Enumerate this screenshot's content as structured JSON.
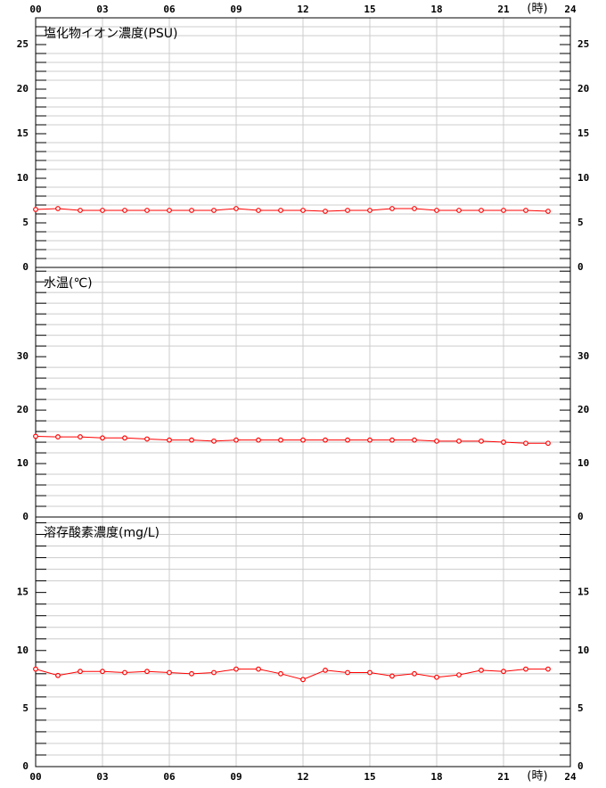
{
  "chart_data": [
    {
      "type": "line",
      "title": "塩化物イオン濃度(PSU)",
      "xaxis": "top",
      "xlabel": "(時)",
      "x": [
        0,
        1,
        2,
        3,
        4,
        5,
        6,
        7,
        8,
        9,
        10,
        11,
        12,
        13,
        14,
        15,
        16,
        17,
        18,
        19,
        20,
        21,
        22,
        23
      ],
      "xlim": [
        0,
        24
      ],
      "xticks": [
        {
          "value": 0,
          "label": "00"
        },
        {
          "value": 3,
          "label": "03"
        },
        {
          "value": 6,
          "label": "06"
        },
        {
          "value": 9,
          "label": "09"
        },
        12,
        15,
        18,
        21,
        24
      ],
      "series": [
        {
          "color": "#ff0000",
          "values": [
            6.5,
            6.6,
            6.4,
            6.4,
            6.4,
            6.4,
            6.4,
            6.4,
            6.4,
            6.6,
            6.4,
            6.4,
            6.4,
            6.3,
            6.4,
            6.4,
            6.6,
            6.6,
            6.4,
            6.4,
            6.4,
            6.4,
            6.4,
            6.3
          ]
        }
      ],
      "ylim": [
        0,
        28
      ],
      "yticks": [
        0,
        5,
        10,
        15,
        20,
        25
      ],
      "minor_yticks": [
        1,
        2,
        3,
        4,
        6,
        7,
        8,
        9,
        11,
        12,
        13,
        14,
        16,
        17,
        18,
        19,
        21,
        22,
        23,
        24,
        26,
        27
      ]
    },
    {
      "type": "line",
      "title": "水温(℃)",
      "x": [
        0,
        1,
        2,
        3,
        4,
        5,
        6,
        7,
        8,
        9,
        10,
        11,
        12,
        13,
        14,
        15,
        16,
        17,
        18,
        19,
        20,
        21,
        22,
        23
      ],
      "xlim": [
        0,
        24
      ],
      "xticks": [
        0,
        3,
        6,
        9,
        12,
        15,
        18,
        21,
        24
      ],
      "series": [
        {
          "color": "#ff0000",
          "values": [
            15.1,
            15.0,
            15.0,
            14.8,
            14.8,
            14.6,
            14.4,
            14.4,
            14.2,
            14.4,
            14.4,
            14.4,
            14.4,
            14.4,
            14.4,
            14.4,
            14.4,
            14.4,
            14.2,
            14.2,
            14.2,
            14.0,
            13.8,
            13.8
          ]
        }
      ],
      "ylim": [
        0,
        46.7
      ],
      "yticks": [
        0,
        10,
        20,
        30
      ],
      "minor_yticks": [
        2,
        4,
        6,
        8,
        12,
        14,
        16,
        18,
        22,
        24,
        26,
        28,
        32,
        34,
        36,
        38,
        40,
        42,
        44,
        46
      ]
    },
    {
      "type": "line",
      "title": "溶存酸素濃度(mg/L)",
      "xaxis": "bottom",
      "xlabel": "(時)",
      "x": [
        0,
        1,
        2,
        3,
        4,
        5,
        6,
        7,
        8,
        9,
        10,
        11,
        12,
        13,
        14,
        15,
        16,
        17,
        18,
        19,
        20,
        21,
        22,
        23
      ],
      "xlim": [
        0,
        24
      ],
      "xticks": [
        {
          "value": 0,
          "label": "00"
        },
        {
          "value": 3,
          "label": "03"
        },
        {
          "value": 6,
          "label": "06"
        },
        {
          "value": 9,
          "label": "09"
        },
        12,
        15,
        18,
        21,
        24
      ],
      "series": [
        {
          "color": "#ff0000",
          "values": [
            8.4,
            7.85,
            8.2,
            8.2,
            8.1,
            8.2,
            8.1,
            8.0,
            8.1,
            8.4,
            8.4,
            8.0,
            7.5,
            8.3,
            8.1,
            8.1,
            7.8,
            8.0,
            7.7,
            7.9,
            8.3,
            8.2,
            8.4,
            8.4
          ]
        }
      ],
      "ylim": [
        0,
        21.5
      ],
      "yticks": [
        0,
        5,
        10,
        15
      ],
      "minor_yticks": [
        1,
        2,
        3,
        4,
        6,
        7,
        8,
        9,
        11,
        12,
        13,
        14,
        16,
        17,
        18,
        19,
        20,
        21
      ]
    }
  ]
}
